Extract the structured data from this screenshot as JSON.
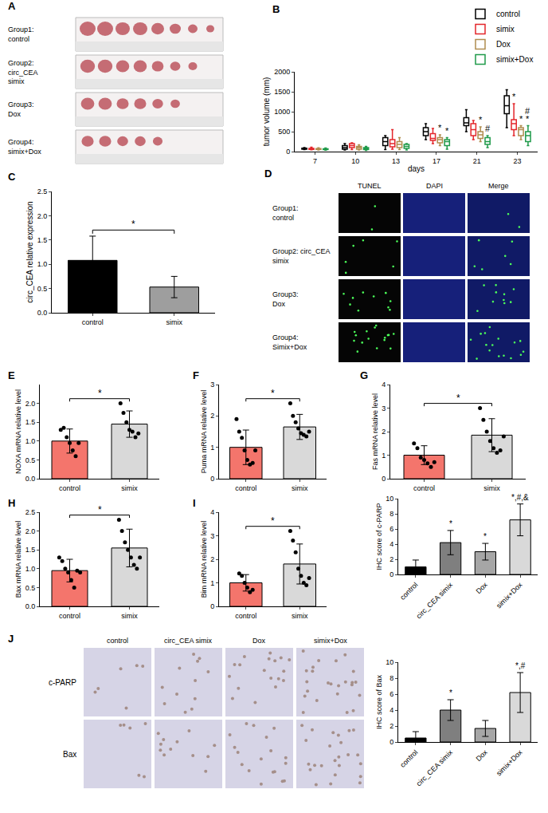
{
  "chart_data": [
    {
      "type": "box",
      "label": "B",
      "x_label": "days",
      "y_label": "tumor volume (mm)",
      "categories": [
        "7",
        "10",
        "13",
        "17",
        "21",
        "23"
      ],
      "series": [
        {
          "name": "control",
          "color": "#000000",
          "min": [
            50,
            40,
            50,
            300,
            500,
            600
          ],
          "q1": [
            60,
            60,
            150,
            400,
            650,
            950
          ],
          "median": [
            70,
            100,
            250,
            500,
            720,
            1150
          ],
          "q3": [
            85,
            150,
            350,
            600,
            850,
            1400
          ],
          "max": [
            100,
            200,
            400,
            700,
            1050,
            1550
          ]
        },
        {
          "name": "simix",
          "color": "#e3262b",
          "min": [
            45,
            50,
            60,
            200,
            300,
            400
          ],
          "q1": [
            55,
            100,
            120,
            280,
            400,
            550
          ],
          "median": [
            65,
            150,
            200,
            330,
            550,
            700
          ],
          "q3": [
            80,
            200,
            300,
            450,
            700,
            800
          ],
          "max": [
            110,
            220,
            550,
            580,
            780,
            1200
          ]
        },
        {
          "name": "Dox",
          "color": "#b08d4f",
          "min": [
            40,
            40,
            50,
            150,
            250,
            300
          ],
          "q1": [
            55,
            60,
            100,
            220,
            330,
            400
          ],
          "median": [
            65,
            100,
            180,
            300,
            420,
            550
          ],
          "q3": [
            75,
            130,
            250,
            350,
            500,
            600
          ],
          "max": [
            95,
            170,
            350,
            420,
            620,
            650
          ]
        },
        {
          "name": "simix+Dox",
          "color": "#1f9a4a",
          "min": [
            35,
            30,
            40,
            60,
            100,
            150
          ],
          "q1": [
            50,
            50,
            80,
            150,
            180,
            250
          ],
          "median": [
            60,
            70,
            130,
            250,
            250,
            400
          ],
          "q3": [
            70,
            100,
            180,
            300,
            350,
            500
          ],
          "max": [
            90,
            130,
            200,
            350,
            400,
            650
          ]
        }
      ],
      "annotations": [
        {
          "category": "17",
          "series": "Dox",
          "text": "*"
        },
        {
          "category": "17",
          "series": "simix+Dox",
          "text": "*"
        },
        {
          "category": "21",
          "series": "Dox",
          "text": "*"
        },
        {
          "category": "21",
          "series": "simix+Dox",
          "text": "#"
        },
        {
          "category": "23",
          "series": "simix",
          "text": "*"
        },
        {
          "category": "23",
          "series": "Dox",
          "text": "*"
        },
        {
          "category": "23",
          "series": "simix+Dox",
          "text": "*"
        },
        {
          "category": "23",
          "series": "simix+Dox",
          "text": "#"
        }
      ],
      "ylim": [
        0,
        2000
      ],
      "yticks": [
        0,
        500,
        1000,
        1500,
        2000
      ],
      "grid": false,
      "legend": "top right"
    },
    {
      "type": "bar",
      "label": "C",
      "y_label": "circ_CEA relative expression",
      "categories": [
        "control",
        "simix"
      ],
      "values": [
        1.08,
        0.53
      ],
      "errors": [
        0.5,
        0.22
      ],
      "colors": [
        "#000000",
        "#9e9e9e"
      ],
      "significance": [
        {
          "from": "control",
          "to": "simix",
          "text": "*"
        }
      ],
      "ylim": [
        0,
        2.5
      ],
      "yticks": [
        {
          "value": 0,
          "label": "0.0"
        },
        {
          "value": 0.5,
          "label": "0.5"
        },
        {
          "value": 1,
          "label": "1.0"
        },
        {
          "value": 1.5,
          "label": "1.5"
        },
        {
          "value": 2,
          "label": "2.0"
        },
        {
          "value": 2.5,
          "label": "2.5"
        }
      ],
      "grid": false
    },
    {
      "type": "bar",
      "label": "E",
      "y_label": "NOXA mRNA relative level",
      "categories": [
        "control",
        "simix"
      ],
      "values": [
        1.0,
        1.45
      ],
      "errors": [
        0.32,
        0.35
      ],
      "points": [
        [
          1.3,
          1.35,
          1.1,
          0.95,
          0.75,
          0.6,
          0.95
        ],
        [
          2.0,
          1.75,
          1.5,
          1.3,
          1.25,
          1.1,
          1.2
        ]
      ],
      "colors": [
        "#f4756c",
        "#d9d9d9"
      ],
      "significance": [
        {
          "from": "control",
          "to": "simix",
          "text": "*"
        }
      ],
      "ylim": [
        0,
        2.5
      ],
      "yticks": [
        {
          "value": 0,
          "label": "0.0"
        },
        {
          "value": 0.5,
          "label": "0.5"
        },
        {
          "value": 1,
          "label": "1.0"
        },
        {
          "value": 1.5,
          "label": "1.5"
        },
        {
          "value": 2,
          "label": "2.0"
        }
      ],
      "grid": false
    },
    {
      "type": "bar",
      "label": "F",
      "y_label": "Puma mRNA relative level",
      "categories": [
        "control",
        "simix"
      ],
      "values": [
        1.0,
        1.65
      ],
      "errors": [
        0.55,
        0.4
      ],
      "points": [
        [
          1.9,
          1.5,
          1.3,
          0.9,
          0.6,
          0.45,
          0.5,
          0.9
        ],
        [
          2.4,
          2.0,
          1.8,
          1.6,
          1.45,
          1.4,
          1.35,
          1.5
        ]
      ],
      "colors": [
        "#f4756c",
        "#d9d9d9"
      ],
      "significance": [
        {
          "from": "control",
          "to": "simix",
          "text": "*"
        }
      ],
      "ylim": [
        0,
        3
      ],
      "yticks": [
        0,
        1,
        2,
        3
      ],
      "grid": false
    },
    {
      "type": "bar",
      "label": "G",
      "y_label": "Fas mRNA relative level",
      "categories": [
        "control",
        "simix"
      ],
      "values": [
        1.0,
        1.85
      ],
      "errors": [
        0.4,
        0.7
      ],
      "points": [
        [
          1.5,
          1.3,
          0.9,
          0.8,
          0.65,
          0.5,
          0.7
        ],
        [
          3.0,
          2.5,
          2.0,
          1.6,
          1.3,
          1.1,
          1.2,
          1.8
        ]
      ],
      "colors": [
        "#f4756c",
        "#d9d9d9"
      ],
      "significance": [
        {
          "from": "control",
          "to": "simix",
          "text": "*"
        }
      ],
      "ylim": [
        0,
        4
      ],
      "yticks": [
        0,
        1,
        2,
        3,
        4
      ],
      "grid": false
    },
    {
      "type": "bar",
      "label": "H",
      "y_label": "Bax mRNA relative level",
      "categories": [
        "control",
        "simix"
      ],
      "values": [
        0.95,
        1.55
      ],
      "errors": [
        0.3,
        0.5
      ],
      "points": [
        [
          1.3,
          1.2,
          1.0,
          0.9,
          0.7,
          0.5,
          0.95,
          0.9
        ],
        [
          2.3,
          2.0,
          1.7,
          1.5,
          1.3,
          1.1,
          1.0,
          1.3
        ]
      ],
      "colors": [
        "#f4756c",
        "#d9d9d9"
      ],
      "significance": [
        {
          "from": "control",
          "to": "simix",
          "text": "*"
        }
      ],
      "ylim": [
        0,
        2.5
      ],
      "yticks": [
        {
          "value": 0,
          "label": "0.0"
        },
        {
          "value": 0.5,
          "label": "0.5"
        },
        {
          "value": 1,
          "label": "1.0"
        },
        {
          "value": 1.5,
          "label": "1.5"
        },
        {
          "value": 2,
          "label": "2.0"
        },
        {
          "value": 2.5,
          "label": "2.5"
        }
      ],
      "grid": false
    },
    {
      "type": "bar",
      "label": "I",
      "y_label": "Bim mRNA relative level",
      "categories": [
        "control",
        "simix"
      ],
      "values": [
        1.0,
        1.8
      ],
      "errors": [
        0.35,
        0.85
      ],
      "points": [
        [
          1.4,
          1.3,
          1.0,
          0.8,
          0.6,
          0.7
        ],
        [
          3.2,
          2.8,
          2.3,
          1.6,
          1.3,
          1.0,
          0.9,
          1.2
        ]
      ],
      "colors": [
        "#f4756c",
        "#d9d9d9"
      ],
      "significance": [
        {
          "from": "control",
          "to": "simix",
          "text": "*"
        }
      ],
      "ylim": [
        0,
        4
      ],
      "yticks": [
        0,
        1,
        2,
        3,
        4
      ],
      "grid": false
    },
    {
      "type": "bar",
      "y_label": "IHC score of c-PARP",
      "categories": [
        "control",
        "circ_CEA simix",
        "Dox",
        "simix+Dox"
      ],
      "values": [
        1.0,
        4.2,
        3.0,
        7.2
      ],
      "errors": [
        0.9,
        1.6,
        1.1,
        2.1
      ],
      "colors": [
        "#000000",
        "#7f7f7f",
        "#a6a6a6",
        "#d9d9d9"
      ],
      "marks": [
        null,
        "*",
        "*",
        "*,#,&"
      ],
      "ylim": [
        0,
        10
      ],
      "yticks": [
        0,
        2,
        4,
        6,
        8,
        10
      ],
      "grid": false
    },
    {
      "type": "bar",
      "y_label": "IHC score of Bax",
      "categories": [
        "control",
        "circ_CEA simix",
        "Dox",
        "simix+Dox"
      ],
      "values": [
        0.5,
        4.0,
        1.7,
        6.2
      ],
      "errors": [
        0.8,
        1.3,
        1.0,
        2.5
      ],
      "colors": [
        "#000000",
        "#7f7f7f",
        "#a6a6a6",
        "#d9d9d9"
      ],
      "marks": [
        null,
        "*",
        null,
        "*,#"
      ],
      "ylim": [
        0,
        10
      ],
      "yticks": [
        0,
        2,
        4,
        6,
        8,
        10
      ],
      "grid": false
    }
  ],
  "image_panels": [
    {
      "label": "A",
      "row_labels": [
        "Group1:\ncontrol",
        "Group2:\ncirc_CEA\nsimix",
        "Group3:\nDox",
        "Group4:\nsimix+Dox"
      ]
    },
    {
      "label": "D",
      "column_labels": [
        "TUNEL",
        "DAPI",
        "Merge"
      ],
      "row_labels": [
        "Group1:\ncontrol",
        "Group2: circ_CEA\nsimix",
        "Group3:\nDox",
        "Group4:\nSimix+Dox"
      ]
    },
    {
      "label": "J",
      "column_labels": [
        "control",
        "circ_CEA simix",
        "Dox",
        "simix+Dox"
      ],
      "row_labels": [
        "c-PARP",
        "Bax"
      ]
    }
  ]
}
